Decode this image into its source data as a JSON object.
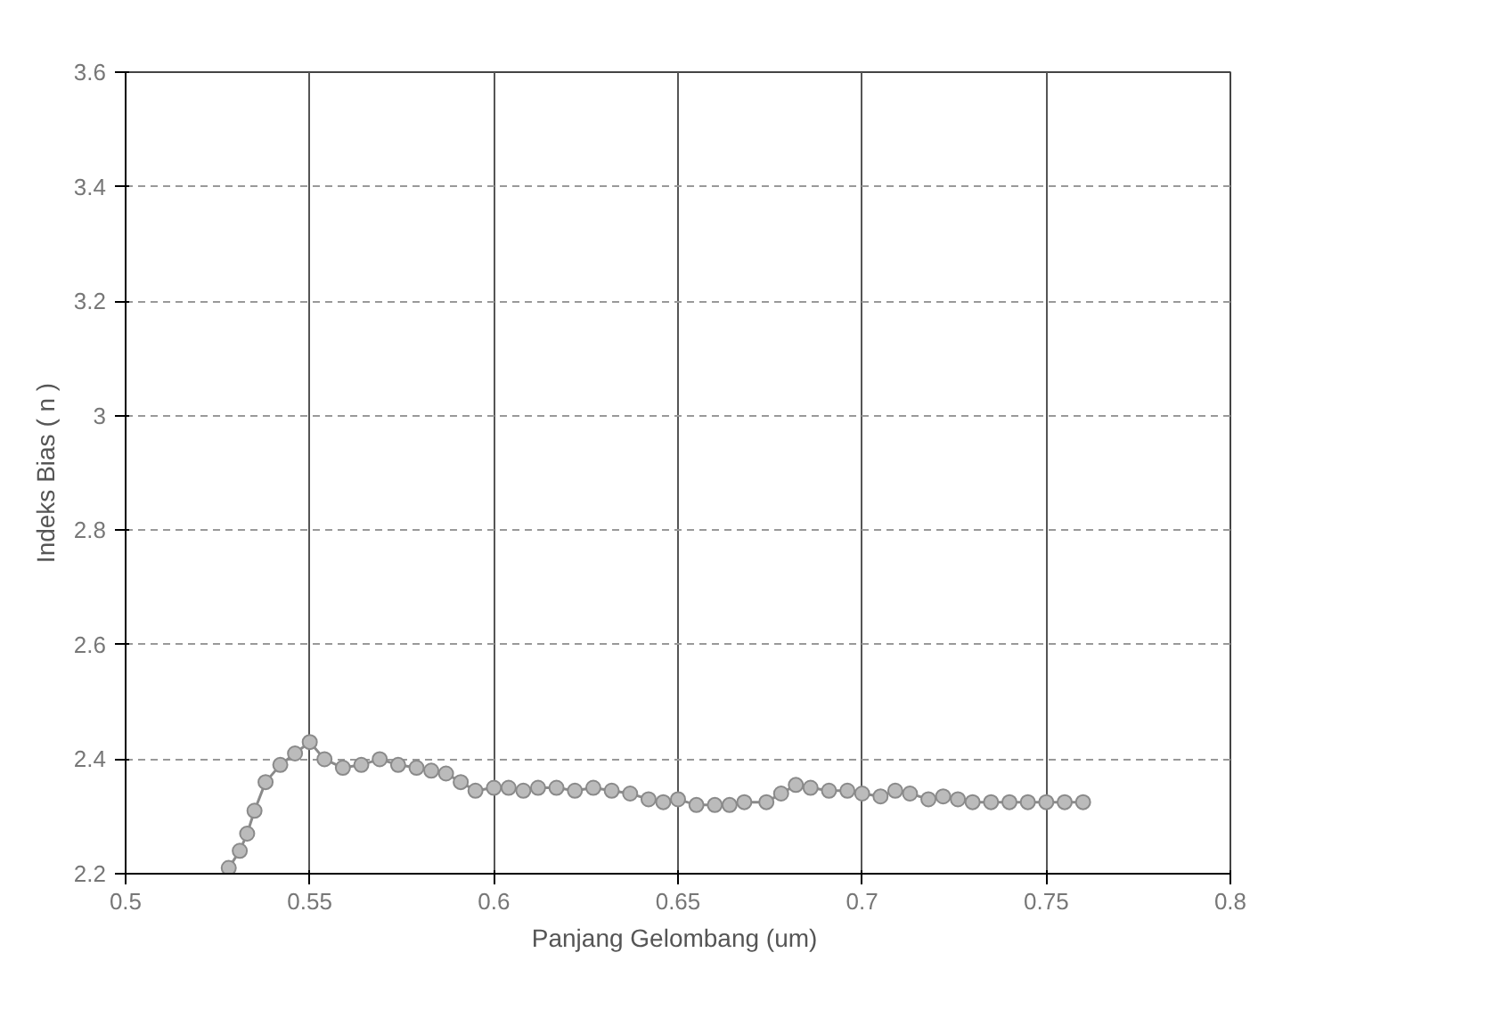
{
  "chart_data": {
    "type": "line",
    "xlabel": "Panjang Gelombang  (um)",
    "ylabel": "Indeks Bias ( n )",
    "x": [
      0.528,
      0.531,
      0.533,
      0.535,
      0.538,
      0.542,
      0.546,
      0.55,
      0.554,
      0.559,
      0.564,
      0.569,
      0.574,
      0.579,
      0.583,
      0.587,
      0.591,
      0.595,
      0.6,
      0.604,
      0.608,
      0.612,
      0.617,
      0.622,
      0.627,
      0.632,
      0.637,
      0.642,
      0.646,
      0.65,
      0.655,
      0.66,
      0.664,
      0.668,
      0.674,
      0.678,
      0.682,
      0.686,
      0.691,
      0.696,
      0.7,
      0.705,
      0.709,
      0.713,
      0.718,
      0.722,
      0.726,
      0.73,
      0.735,
      0.74,
      0.745,
      0.75,
      0.755,
      0.76
    ],
    "series": [
      {
        "color": "#8a8a8a",
        "values": [
          2.21,
          2.24,
          2.27,
          2.31,
          2.36,
          2.39,
          2.41,
          2.43,
          2.4,
          2.385,
          2.39,
          2.4,
          2.39,
          2.385,
          2.38,
          2.375,
          2.36,
          2.345,
          2.35,
          2.35,
          2.345,
          2.35,
          2.35,
          2.345,
          2.35,
          2.345,
          2.34,
          2.33,
          2.325,
          2.33,
          2.32,
          2.32,
          2.32,
          2.325,
          2.325,
          2.34,
          2.355,
          2.35,
          2.345,
          2.345,
          2.34,
          2.335,
          2.345,
          2.34,
          2.33,
          2.335,
          2.33,
          2.325,
          2.325,
          2.325,
          2.325,
          2.325,
          2.325,
          2.325
        ]
      }
    ],
    "xlim": [
      0.5,
      0.8
    ],
    "ylim": [
      2.2,
      3.6
    ],
    "xticks": [
      {
        "value": 0.5,
        "label": "0.5"
      },
      0.55,
      {
        "value": 0.6,
        "label": "0.6"
      },
      0.65,
      {
        "value": 0.7,
        "label": "0.7"
      },
      0.75,
      {
        "value": 0.8,
        "label": "0.8"
      }
    ],
    "yticks": [
      2.2,
      2.4,
      2.6,
      2.8,
      {
        "value": 3.0,
        "label": "3"
      },
      3.2,
      3.4,
      3.6
    ],
    "grid": true,
    "marker": "circle",
    "line_style": "solid"
  }
}
